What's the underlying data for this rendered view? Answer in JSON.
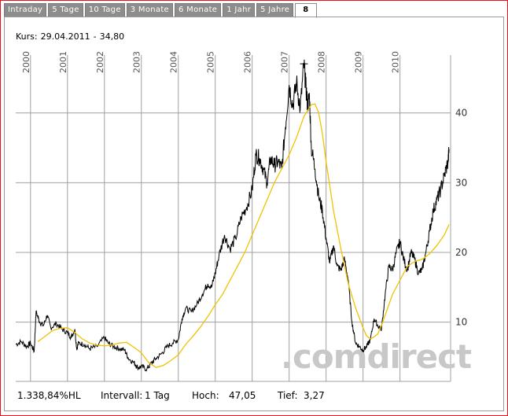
{
  "tabs": [
    "Intraday",
    "5 Tage",
    "10 Tage",
    "3 Monate",
    "6 Monate",
    "1 Jahr",
    "5 Jahre",
    "8"
  ],
  "active_tab": 7,
  "kurs": {
    "label": "Kurs:",
    "date": "29.04.2011",
    "sep": "-",
    "value": "34,80"
  },
  "watermark": ".comdirect",
  "footer": {
    "performance": "1.338,84%HL",
    "intervall_label": "Intervall:",
    "intervall_value": "1 Tag",
    "hoch_label": "Hoch:",
    "hoch_value": "47,05",
    "tief_label": "Tief:",
    "tief_value": "3,27"
  },
  "colors": {
    "frame": "#e8121e",
    "price_line": "#000000",
    "moving_average": "#f2c200",
    "grid": "#a0a0a0",
    "tab_bg": "#8d8d8d",
    "watermark": "#c8c8c8"
  },
  "chart_data": {
    "type": "line",
    "title": "",
    "xlabel": "",
    "ylabel": "",
    "x_ticks": [
      "2000",
      "2001",
      "2002",
      "2003",
      "2004",
      "2005",
      "2006",
      "2007",
      "2008",
      "2009",
      "2010"
    ],
    "y_ticks": [
      "10",
      "20",
      "30",
      "40"
    ],
    "xlim": [
      1999.6,
      2011.37
    ],
    "ylim": [
      1.5,
      50
    ],
    "grid": true,
    "series": [
      {
        "role": "price",
        "x": [
          1999.6,
          1999.75,
          1999.9,
          2000.0,
          2000.1,
          2000.15,
          2000.25,
          2000.35,
          2000.45,
          2000.55,
          2000.7,
          2000.85,
          2001.0,
          2001.1,
          2001.2,
          2001.25,
          2001.3,
          2001.45,
          2001.6,
          2001.8,
          2002.0,
          2002.1,
          2002.25,
          2002.4,
          2002.55,
          2002.65,
          2002.8,
          2002.9,
          2003.0,
          2003.15,
          2003.25,
          2003.4,
          2003.55,
          2003.7,
          2003.85,
          2004.0,
          2004.1,
          2004.2,
          2004.35,
          2004.5,
          2004.65,
          2004.8,
          2004.9,
          2005.0,
          2005.1,
          2005.25,
          2005.4,
          2005.55,
          2005.7,
          2005.85,
          2006.0,
          2006.1,
          2006.2,
          2006.3,
          2006.4,
          2006.5,
          2006.6,
          2006.7,
          2006.8,
          2006.9,
          2007.0,
          2007.1,
          2007.2,
          2007.3,
          2007.4,
          2007.45,
          2007.5,
          2007.55,
          2007.6,
          2007.7,
          2007.8,
          2007.9,
          2008.0,
          2008.1,
          2008.2,
          2008.3,
          2008.4,
          2008.5,
          2008.6,
          2008.7,
          2008.8,
          2008.9,
          2009.0,
          2009.1,
          2009.2,
          2009.3,
          2009.4,
          2009.5,
          2009.6,
          2009.7,
          2009.8,
          2009.9,
          2010.0,
          2010.1,
          2010.2,
          2010.3,
          2010.4,
          2010.5,
          2010.6,
          2010.7,
          2010.8,
          2010.9,
          2011.0,
          2011.1,
          2011.2,
          2011.3,
          2011.33
        ],
        "y": [
          6.8,
          7.2,
          6.5,
          7.0,
          5.8,
          11.5,
          10.0,
          9.5,
          11.0,
          9.2,
          9.8,
          9.0,
          8.5,
          7.8,
          9.0,
          6.2,
          7.0,
          6.8,
          6.2,
          6.5,
          7.8,
          7.0,
          6.5,
          6.2,
          6.0,
          4.8,
          4.2,
          3.5,
          3.6,
          3.27,
          4.0,
          4.8,
          5.5,
          6.5,
          7.0,
          7.5,
          10.5,
          12.0,
          11.5,
          12.5,
          14.0,
          15.5,
          15.0,
          17.0,
          19.5,
          22.5,
          20.5,
          22.0,
          25.0,
          26.5,
          29.0,
          34.0,
          33.5,
          32.0,
          30.0,
          33.5,
          32.5,
          33.0,
          32.0,
          38.0,
          44.0,
          41.0,
          44.5,
          40.5,
          47.05,
          44.0,
          41.0,
          42.5,
          35.0,
          32.0,
          28.0,
          26.0,
          22.0,
          18.5,
          21.0,
          18.0,
          17.5,
          19.0,
          16.0,
          10.0,
          7.0,
          6.5,
          6.0,
          6.5,
          7.5,
          10.5,
          9.5,
          9.0,
          14.0,
          18.0,
          17.5,
          20.0,
          21.5,
          19.0,
          17.5,
          20.0,
          19.0,
          17.0,
          17.5,
          20.0,
          23.0,
          26.0,
          27.5,
          29.0,
          31.0,
          33.0,
          34.8
        ]
      },
      {
        "role": "moving_average",
        "x": [
          2000.2,
          2000.4,
          2000.6,
          2000.8,
          2001.0,
          2001.2,
          2001.4,
          2001.6,
          2001.8,
          2002.0,
          2002.2,
          2002.4,
          2002.6,
          2002.8,
          2003.0,
          2003.2,
          2003.4,
          2003.6,
          2003.8,
          2004.0,
          2004.2,
          2004.4,
          2004.6,
          2004.8,
          2005.0,
          2005.2,
          2005.4,
          2005.6,
          2005.8,
          2006.0,
          2006.2,
          2006.4,
          2006.6,
          2006.8,
          2007.0,
          2007.2,
          2007.4,
          2007.6,
          2007.7,
          2007.8,
          2007.9,
          2008.0,
          2008.2,
          2008.4,
          2008.6,
          2008.8,
          2009.0,
          2009.1,
          2009.2,
          2009.3,
          2009.4,
          2009.5,
          2009.6,
          2009.8,
          2010.0,
          2010.2,
          2010.4,
          2010.6,
          2010.8,
          2011.0,
          2011.2,
          2011.33
        ],
        "y": [
          7.2,
          8.0,
          8.8,
          9.1,
          9.2,
          8.5,
          7.6,
          7.0,
          6.7,
          6.6,
          6.7,
          7.0,
          7.1,
          6.4,
          5.6,
          4.2,
          3.5,
          3.8,
          4.5,
          5.3,
          6.8,
          8.0,
          9.3,
          10.8,
          12.5,
          14.0,
          16.0,
          18.0,
          20.0,
          22.5,
          25.0,
          27.5,
          30.0,
          32.0,
          34.0,
          36.5,
          39.5,
          41.2,
          41.3,
          40.0,
          37.0,
          33.0,
          26.0,
          20.5,
          15.5,
          12.0,
          9.2,
          8.0,
          7.6,
          7.9,
          8.3,
          9.5,
          11.0,
          14.0,
          16.0,
          18.0,
          18.7,
          19.0,
          19.8,
          21.0,
          22.5,
          24.0
        ]
      }
    ]
  }
}
